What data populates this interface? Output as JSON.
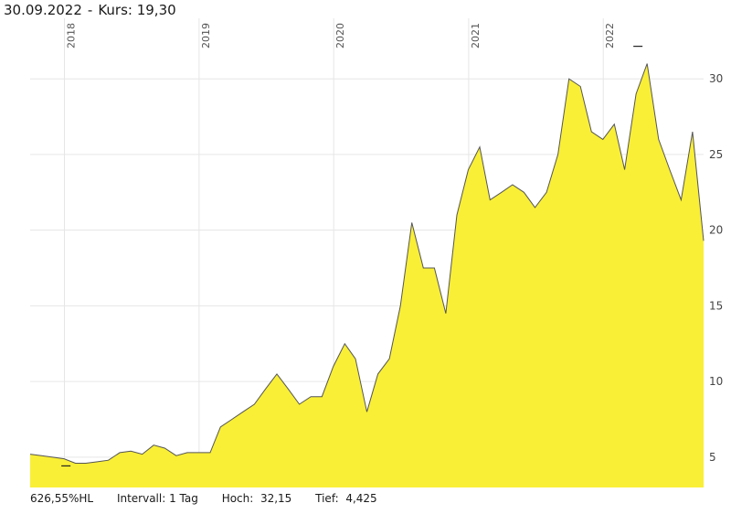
{
  "header": {
    "date": "30.09.2022",
    "separator": "-",
    "price_label": "Kurs: 19,30"
  },
  "footer": {
    "performance": "626,55%HL",
    "interval": "Intervall: 1 Tag",
    "high_label": "Hoch:",
    "high_value": "32,15",
    "low_label": "Tief:",
    "low_value": "4,425"
  },
  "colors": {
    "area_fill": "#f9ef36",
    "line": "#555555",
    "grid": "#e6e6e6"
  },
  "chart_data": {
    "type": "area",
    "title": "",
    "xlabel": "",
    "ylabel": "",
    "x_range": [
      "2017-09-30",
      "2022-09-30"
    ],
    "ylim": [
      3,
      34
    ],
    "x_ticks": [
      "2018",
      "2019",
      "2020",
      "2021",
      "2022"
    ],
    "y_ticks": [
      5,
      10,
      15,
      20,
      25,
      30
    ],
    "grid": true,
    "high": {
      "x": "2022-04-05",
      "y": 32.15
    },
    "low": {
      "x": "2018-01-05",
      "y": 4.425
    },
    "series": [
      {
        "x": [
          "2017-09-30",
          "2017-10-31",
          "2017-11-30",
          "2017-12-31",
          "2018-01-31",
          "2018-02-28",
          "2018-03-31",
          "2018-04-30",
          "2018-05-31",
          "2018-06-30",
          "2018-07-31",
          "2018-08-31",
          "2018-09-30",
          "2018-10-31",
          "2018-11-30",
          "2018-12-31",
          "2019-01-31",
          "2019-02-28",
          "2019-03-31",
          "2019-04-30",
          "2019-05-31",
          "2019-06-30",
          "2019-07-31",
          "2019-08-31",
          "2019-09-30",
          "2019-10-31",
          "2019-11-30",
          "2019-12-31",
          "2020-01-31",
          "2020-02-29",
          "2020-03-31",
          "2020-04-30",
          "2020-05-31",
          "2020-06-30",
          "2020-07-31",
          "2020-08-31",
          "2020-09-30",
          "2020-10-31",
          "2020-11-30",
          "2020-12-31",
          "2021-01-31",
          "2021-02-28",
          "2021-03-31",
          "2021-04-30",
          "2021-05-31",
          "2021-06-30",
          "2021-07-31",
          "2021-08-31",
          "2021-09-30",
          "2021-10-31",
          "2021-11-30",
          "2021-12-31",
          "2022-01-31",
          "2022-02-28",
          "2022-03-31",
          "2022-04-30",
          "2022-05-31",
          "2022-06-30",
          "2022-07-31",
          "2022-08-31",
          "2022-09-30"
        ],
        "values": [
          5.2,
          5.1,
          5.0,
          4.9,
          4.6,
          4.6,
          4.7,
          4.8,
          5.3,
          5.4,
          5.2,
          5.8,
          5.6,
          5.1,
          5.3,
          5.3,
          5.3,
          7.0,
          7.5,
          8.0,
          8.5,
          9.5,
          10.5,
          9.5,
          8.5,
          9.0,
          9.0,
          11.0,
          12.5,
          11.5,
          8.0,
          10.5,
          11.5,
          15.0,
          20.5,
          17.5,
          17.5,
          14.5,
          21.0,
          24.0,
          25.5,
          22.0,
          22.5,
          23.0,
          22.5,
          21.5,
          22.5,
          25.0,
          30.0,
          29.5,
          26.5,
          26.0,
          27.0,
          24.0,
          29.0,
          31.0,
          26.0,
          24.0,
          22.0,
          26.5,
          19.3
        ]
      }
    ]
  }
}
